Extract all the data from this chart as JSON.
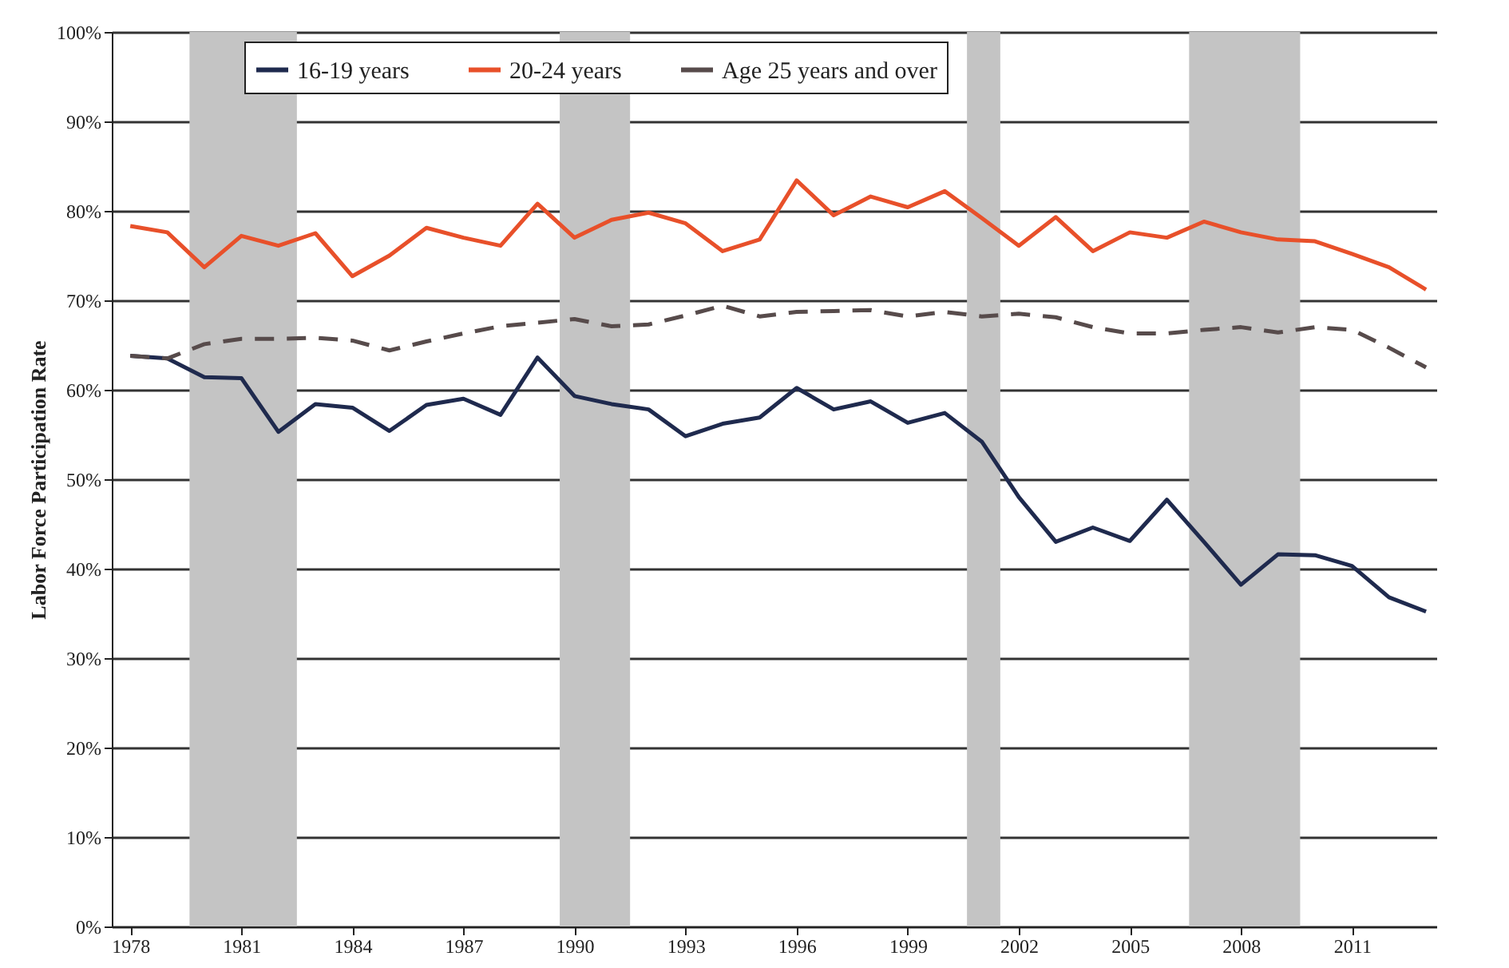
{
  "chart_data": {
    "type": "line",
    "ylabel": "Labor Force Participation Rate",
    "x": [
      1978,
      1979,
      1980,
      1981,
      1982,
      1983,
      1984,
      1985,
      1986,
      1987,
      1988,
      1989,
      1990,
      1991,
      1992,
      1993,
      1994,
      1995,
      1996,
      1997,
      1998,
      1999,
      2000,
      2001,
      2002,
      2003,
      2004,
      2005,
      2006,
      2007,
      2008,
      2009,
      2010,
      2011,
      2012,
      2013
    ],
    "series": [
      {
        "name": "16-19 years",
        "color": "#1f2a4e",
        "values": [
          63.8,
          63.5,
          61.4,
          61.3,
          55.3,
          58.4,
          58.0,
          55.4,
          58.3,
          59.0,
          57.2,
          63.6,
          59.3,
          58.4,
          57.8,
          54.8,
          56.2,
          56.9,
          60.2,
          57.8,
          58.7,
          56.3,
          57.4,
          54.2,
          48.0,
          43.0,
          44.6,
          43.1,
          47.7,
          43.0,
          38.2,
          41.6,
          41.5,
          40.3,
          36.8,
          35.2
        ]
      },
      {
        "name": "20-24 years",
        "color": "#e8502a",
        "values": [
          78.3,
          77.6,
          73.7,
          77.2,
          76.1,
          77.5,
          72.7,
          75.0,
          78.1,
          77.0,
          76.1,
          80.8,
          77.0,
          79.0,
          79.8,
          78.6,
          75.5,
          76.8,
          83.4,
          79.5,
          81.6,
          80.4,
          82.2,
          79.2,
          76.1,
          79.3,
          75.5,
          77.6,
          77.0,
          78.8,
          77.6,
          76.8,
          76.6,
          75.2,
          73.7,
          71.2
        ]
      },
      {
        "name": "Age 25 years and over",
        "color": "#574b4b",
        "line_style": "dashed",
        "values": [
          63.8,
          63.5,
          65.1,
          65.7,
          65.7,
          65.8,
          65.5,
          64.4,
          65.4,
          66.3,
          67.1,
          67.5,
          67.9,
          67.1,
          67.3,
          68.3,
          69.4,
          68.2,
          68.7,
          68.8,
          68.9,
          68.2,
          68.7,
          68.2,
          68.5,
          68.1,
          67.0,
          66.3,
          66.3,
          66.7,
          67.0,
          66.4,
          67.0,
          66.7,
          64.7,
          62.5
        ]
      }
    ],
    "bands": [
      {
        "axis": "x",
        "from": 1979.6,
        "to": 1982.5,
        "color": "#c4c4c4"
      },
      {
        "axis": "x",
        "from": 1989.6,
        "to": 1991.5,
        "color": "#c4c4c4"
      },
      {
        "axis": "x",
        "from": 2000.6,
        "to": 2001.5,
        "color": "#c4c4c4"
      },
      {
        "axis": "x",
        "from": 2006.6,
        "to": 2009.6,
        "color": "#c4c4c4"
      }
    ],
    "xlim": [
      1977.5,
      2013.3
    ],
    "xticks": [
      1978,
      1981,
      1984,
      1987,
      1990,
      1993,
      1996,
      1999,
      2002,
      2005,
      2008,
      2011
    ],
    "ylim": [
      0,
      100
    ],
    "yticks": [
      {
        "value": 0,
        "label": "0%"
      },
      {
        "value": 10,
        "label": "10%"
      },
      {
        "value": 20,
        "label": "20%"
      },
      {
        "value": 30,
        "label": "30%"
      },
      {
        "value": 40,
        "label": "40%"
      },
      {
        "value": 50,
        "label": "50%"
      },
      {
        "value": 60,
        "label": "60%"
      },
      {
        "value": 70,
        "label": "70%"
      },
      {
        "value": 80,
        "label": "80%"
      },
      {
        "value": 90,
        "label": "90%"
      },
      {
        "value": 100,
        "label": "100%"
      }
    ],
    "grid": "y",
    "legend": "top"
  }
}
